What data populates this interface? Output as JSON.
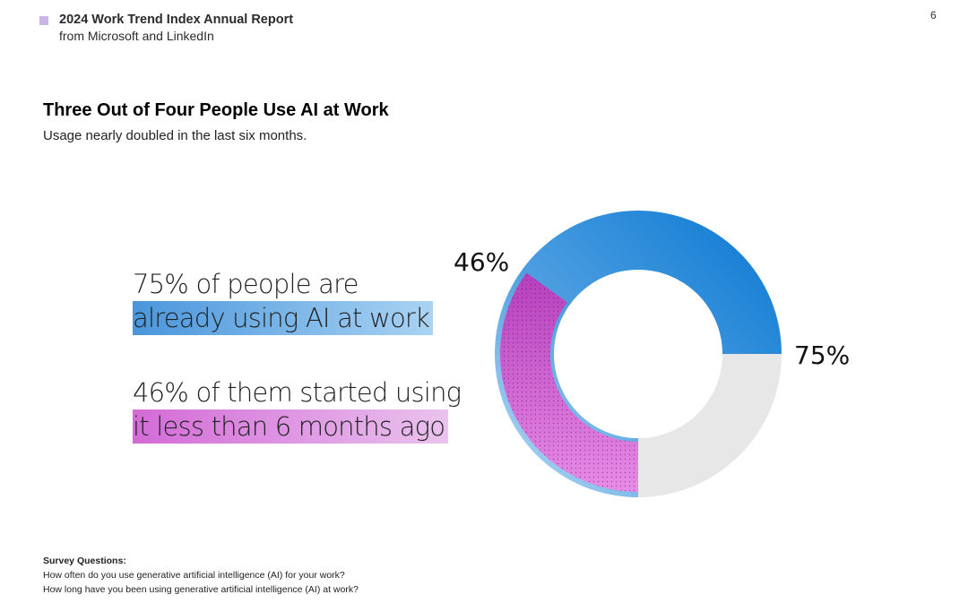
{
  "header": {
    "report_title": "2024 Work Trend Index Annual Report",
    "report_subtitle": "from Microsoft and LinkedIn",
    "page_number": "6"
  },
  "page": {
    "title": "Three Out of Four People Use AI at Work",
    "subtitle": "Usage nearly doubled in the last six months."
  },
  "stats": {
    "stat1_line1": "75% of people are",
    "stat1_line2": "already using AI at work",
    "stat2_line1": "46% of them started using",
    "stat2_line2": "it less than 6 months ago"
  },
  "chart_data": {
    "type": "pie",
    "style": "donut",
    "title": "",
    "slices": [
      {
        "label": "75%",
        "value": 75,
        "color": "#0a78d2"
      },
      {
        "label": "",
        "value": 25,
        "color": "#e7e7e7"
      }
    ],
    "inner_segment": {
      "label": "46%",
      "value": 46,
      "color": "#c650c9",
      "note": "share of the 75% (as shown)"
    }
  },
  "survey": {
    "heading": "Survey Questions:",
    "questions": [
      "How often do you use generative artificial intelligence (AI) for your work?",
      "How long have you been using generative artificial intelligence (AI) at work?"
    ]
  }
}
